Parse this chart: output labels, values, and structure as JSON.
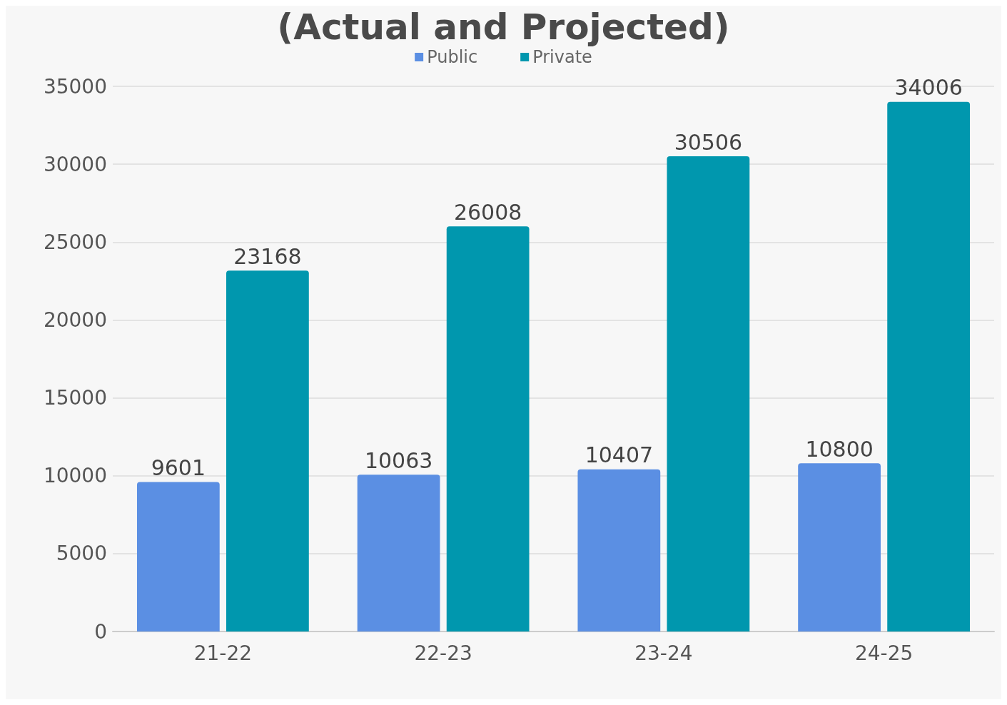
{
  "chart_data": {
    "type": "bar",
    "title": "(Actual and Projected)",
    "categories": [
      "21-22",
      "22-23",
      "23-24",
      "24-25"
    ],
    "series": [
      {
        "name": "Public",
        "color": "#5b8fe3",
        "values": [
          9601,
          10063,
          10407,
          10800
        ]
      },
      {
        "name": "Private",
        "color": "#0097ae",
        "values": [
          23168,
          26008,
          30506,
          34006
        ]
      }
    ],
    "ylim": [
      0,
      35000
    ],
    "yticks": [
      0,
      5000,
      10000,
      15000,
      20000,
      25000,
      30000,
      35000
    ],
    "grid": "y",
    "legend": "top",
    "data_labels": true
  }
}
